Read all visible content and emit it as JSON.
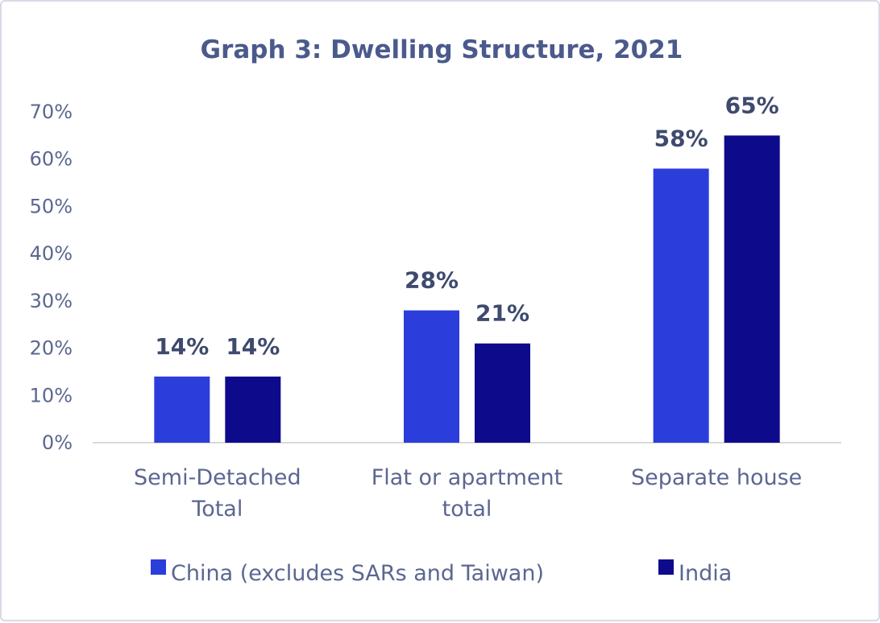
{
  "chart_data": {
    "type": "bar",
    "title": "Graph 3: Dwelling Structure, 2021",
    "categories": [
      [
        "Semi-Detached",
        "Total"
      ],
      [
        "Flat or apartment",
        "total"
      ],
      [
        "Separate house"
      ]
    ],
    "series": [
      {
        "name": "China (excludes SARs and Taiwan)",
        "color": "#2b3ddb",
        "values": [
          14,
          28,
          58
        ],
        "labels": [
          "14%",
          "28%",
          "58%"
        ]
      },
      {
        "name": "India",
        "color": "#0e0a8c",
        "values": [
          14,
          21,
          65
        ],
        "labels": [
          "14%",
          "21%",
          "65%"
        ]
      }
    ],
    "yticks": [
      "0%",
      "10%",
      "20%",
      "30%",
      "40%",
      "50%",
      "60%",
      "70%"
    ],
    "ylim": [
      0,
      70
    ],
    "xlabel": "",
    "ylabel": "",
    "grid": false,
    "legend": "bottom",
    "axis_color": "#d9d9d9"
  }
}
